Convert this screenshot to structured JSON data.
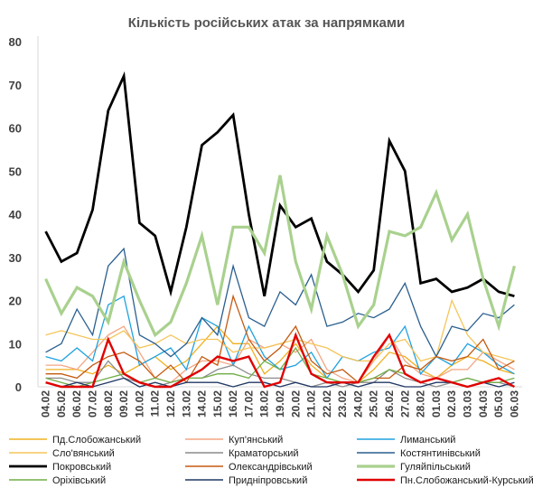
{
  "chart_data": {
    "type": "line",
    "title": "Кількість російських атак за напрямками",
    "xlabel": "",
    "ylabel": "",
    "ylim": [
      0,
      80
    ],
    "yticks": [
      "0",
      "10",
      "20",
      "30",
      "40",
      "50",
      "60",
      "70",
      "80"
    ],
    "grid": false,
    "legend_position": "bottom",
    "x": [
      "04.02",
      "05.02",
      "06.02",
      "07.02",
      "08.02",
      "09.02",
      "10.02",
      "11.02",
      "12.02",
      "13.02",
      "14.02",
      "15.02",
      "16.02",
      "17.02",
      "18.02",
      "19.02",
      "20.02",
      "21.02",
      "22.02",
      "23.02",
      "24.02",
      "25.02",
      "26.02",
      "27.02",
      "28.02",
      "01.03",
      "02.03",
      "03.03",
      "04.03",
      "05.03",
      "06.03"
    ],
    "series": [
      {
        "name": "Пд.Слобожанський",
        "color": "#f0b020",
        "width": 1.3,
        "values": [
          4,
          4,
          4,
          3,
          5,
          3,
          5,
          7,
          4,
          6,
          10,
          14,
          10,
          10,
          3,
          6,
          10,
          5,
          2,
          1,
          1,
          4,
          8,
          7,
          4,
          2,
          5,
          7,
          6,
          4,
          3
        ]
      },
      {
        "name": "Куп'янський",
        "color": "#f4a582",
        "width": 1.3,
        "values": [
          5,
          5,
          4,
          8,
          12,
          14,
          8,
          2,
          1,
          4,
          6,
          6,
          5,
          11,
          9,
          10,
          8,
          11,
          4,
          2,
          1,
          6,
          12,
          6,
          3,
          2,
          4,
          4,
          8,
          6,
          4
        ]
      },
      {
        "name": "Лиманський",
        "color": "#1fa2df",
        "width": 1.3,
        "values": [
          7,
          6,
          9,
          6,
          19,
          21,
          5,
          7,
          9,
          4,
          16,
          14,
          5,
          14,
          7,
          4,
          5,
          8,
          2,
          7,
          6,
          8,
          9,
          14,
          3,
          7,
          5,
          10,
          8,
          5,
          3
        ]
      },
      {
        "name": "Сло'вянський",
        "color": "#f5c55a",
        "width": 1.3,
        "values": [
          12,
          13,
          12,
          11,
          11,
          13,
          9,
          10,
          12,
          10,
          11,
          11,
          8,
          9,
          9,
          10,
          11,
          10,
          9,
          7,
          6,
          6,
          10,
          11,
          6,
          7,
          20,
          12,
          8,
          7,
          6
        ]
      },
      {
        "name": "Краматорський",
        "color": "#8c8c8c",
        "width": 1.3,
        "values": [
          2,
          2,
          1,
          1,
          6,
          2,
          1,
          0,
          1,
          2,
          2,
          4,
          5,
          3,
          2,
          2,
          1,
          0,
          1,
          0,
          1,
          1,
          4,
          2,
          1,
          0,
          1,
          2,
          1,
          1,
          0
        ]
      },
      {
        "name": "Костянтинівський",
        "color": "#2a5f8f",
        "width": 1.3,
        "values": [
          8,
          10,
          18,
          12,
          28,
          32,
          12,
          10,
          7,
          10,
          16,
          12,
          28,
          16,
          14,
          22,
          19,
          26,
          14,
          15,
          17,
          16,
          18,
          24,
          14,
          7,
          14,
          13,
          17,
          16,
          19
        ]
      },
      {
        "name": "Покровський",
        "color": "#000000",
        "width": 2.8,
        "values": [
          36,
          29,
          31,
          41,
          64,
          72,
          38,
          35,
          22,
          37,
          56,
          59,
          63,
          40,
          21,
          42,
          37,
          39,
          29,
          26,
          22,
          27,
          57,
          50,
          24,
          25,
          22,
          23,
          25,
          22,
          21
        ]
      },
      {
        "name": "Олександрівський",
        "color": "#c55a11",
        "width": 1.3,
        "values": [
          3,
          3,
          2,
          5,
          7,
          8,
          6,
          2,
          5,
          1,
          7,
          5,
          21,
          11,
          6,
          9,
          14,
          6,
          3,
          4,
          1,
          2,
          2,
          5,
          4,
          7,
          6,
          7,
          11,
          4,
          6
        ]
      },
      {
        "name": "Гуляйпільський",
        "color": "#a9d18e",
        "width": 3.2,
        "values": [
          25,
          17,
          23,
          21,
          15,
          29,
          20,
          12,
          15,
          24,
          35,
          19,
          37,
          37,
          31,
          49,
          29,
          18,
          35,
          26,
          14,
          19,
          36,
          35,
          37,
          45,
          34,
          40,
          25,
          14,
          28
        ]
      },
      {
        "name": "Оріхівський",
        "color": "#70ad47",
        "width": 1.3,
        "values": [
          2,
          1,
          0,
          1,
          2,
          3,
          1,
          2,
          1,
          2,
          2,
          3,
          3,
          2,
          6,
          4,
          9,
          3,
          2,
          1,
          1,
          2,
          4,
          3,
          1,
          2,
          1,
          2,
          1,
          1,
          2
        ]
      },
      {
        "name": "Придніпровський",
        "color": "#203864",
        "width": 1.3,
        "values": [
          1,
          0,
          1,
          0,
          1,
          2,
          0,
          1,
          0,
          1,
          1,
          1,
          0,
          1,
          1,
          0,
          1,
          0,
          0,
          1,
          0,
          1,
          1,
          0,
          0,
          1,
          1,
          0,
          1,
          0,
          1
        ]
      },
      {
        "name": "Пн.Слобожанський-Курський",
        "color": "#e00000",
        "width": 2.4,
        "values": [
          1,
          0,
          0,
          0,
          11,
          3,
          1,
          0,
          0,
          2,
          4,
          7,
          6,
          7,
          0,
          1,
          12,
          3,
          1,
          1,
          1,
          7,
          12,
          3,
          1,
          2,
          1,
          0,
          1,
          2,
          0
        ]
      }
    ]
  }
}
